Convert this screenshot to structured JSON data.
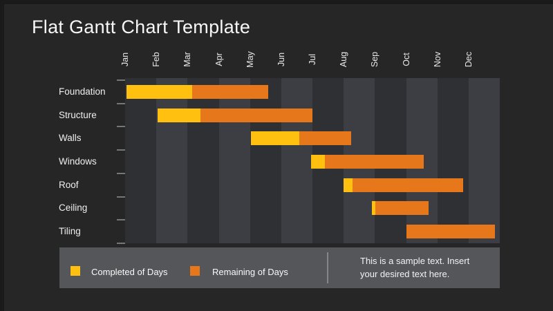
{
  "title": "Flat Gantt Chart Template",
  "colors": {
    "completed": "#FFC010",
    "remaining": "#E6771B",
    "column_dark": "#2E3034",
    "column_light": "#3C3E44",
    "slide_background": "#262626",
    "legend_background": "#55565A"
  },
  "chart_data": {
    "type": "bar",
    "subtype": "gantt",
    "orientation": "horizontal",
    "x_axis_unit": "months",
    "x_range_months": [
      0,
      12
    ],
    "months": [
      "Jan",
      "Feb",
      "Mar",
      "Apr",
      "May",
      "Jun",
      "Jul",
      "Aug",
      "Sep",
      "Oct",
      "Nov",
      "Dec"
    ],
    "legend_series": [
      "Completed of Days",
      "Remaining of Days"
    ],
    "tasks": [
      {
        "name": "Foundation",
        "start": 0.04,
        "completed_end": 2.15,
        "end": 4.58
      },
      {
        "name": "Structure",
        "start": 1.04,
        "completed_end": 2.41,
        "end": 6.0
      },
      {
        "name": "Walls",
        "start": 4.03,
        "completed_end": 5.58,
        "end": 7.24
      },
      {
        "name": "Windows",
        "start": 5.96,
        "completed_end": 6.4,
        "end": 9.56
      },
      {
        "name": "Roof",
        "start": 7.0,
        "completed_end": 7.28,
        "end": 10.83
      },
      {
        "name": "Ceiling",
        "start": 7.9,
        "completed_end": 8.01,
        "end": 9.72
      },
      {
        "name": "Tiling",
        "start": 9.01,
        "completed_end": 9.01,
        "end": 11.84
      }
    ]
  },
  "legend": {
    "completed_label": "Completed of Days",
    "remaining_label": "Remaining of Days",
    "sample_line1": "This is a sample text. Insert",
    "sample_line2": "your desired text here."
  }
}
